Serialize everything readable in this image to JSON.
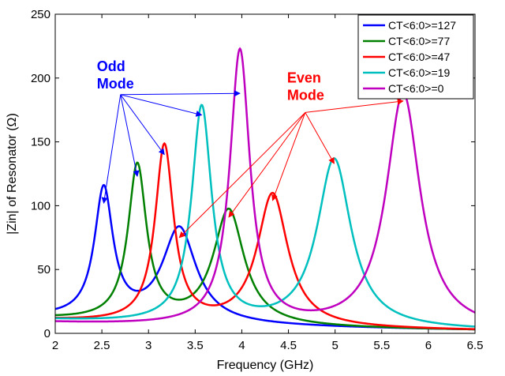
{
  "chart_data": {
    "type": "line",
    "xlabel": "Frequency (GHz)",
    "ylabel": "|Zin| of Resonator (Ω)",
    "xlim": [
      2,
      6.5
    ],
    "ylim": [
      0,
      250
    ],
    "xticks": [
      2,
      2.5,
      3,
      3.5,
      4,
      4.5,
      5,
      5.5,
      6,
      6.5
    ],
    "xtick_labels": [
      "2",
      "2.5",
      "3",
      "3.5",
      "4",
      "4.5",
      "5",
      "5.5",
      "6",
      "6.5"
    ],
    "yticks": [
      0,
      50,
      100,
      150,
      200,
      250
    ],
    "ytick_labels": [
      "0",
      "50",
      "100",
      "150",
      "200",
      "250"
    ],
    "legend_position": "top-right",
    "series": [
      {
        "name": "CT<6:0>=127",
        "color": "#0000ff",
        "odd": {
          "f": 2.52,
          "peak": 101,
          "w": 0.12
        },
        "even": {
          "f": 3.33,
          "peak": 74,
          "w": 0.22
        },
        "offset": 12
      },
      {
        "name": "CT<6:0>=77",
        "color": "#008000",
        "odd": {
          "f": 2.88,
          "peak": 122,
          "w": 0.12
        },
        "even": {
          "f": 3.86,
          "peak": 90,
          "w": 0.2
        },
        "offset": 11
      },
      {
        "name": "CT<6:0>=47",
        "color": "#ff0000",
        "odd": {
          "f": 3.17,
          "peak": 139,
          "w": 0.12
        },
        "even": {
          "f": 4.33,
          "peak": 104,
          "w": 0.2
        },
        "offset": 10
      },
      {
        "name": "CT<6:0>=19",
        "color": "#00bfbf",
        "odd": {
          "f": 3.57,
          "peak": 170,
          "w": 0.13
        },
        "even": {
          "f": 4.99,
          "peak": 132,
          "w": 0.22
        },
        "offset": 10
      },
      {
        "name": "CT<6:0>=0",
        "color": "#bf00bf",
        "odd": {
          "f": 3.98,
          "peak": 216,
          "w": 0.13
        },
        "even": {
          "f": 5.73,
          "peak": 185,
          "w": 0.22
        },
        "offset": 8
      }
    ],
    "annotations": [
      {
        "text_lines": [
          "Odd",
          "Mode"
        ],
        "color": "#0000ff",
        "origin": [
          2.7,
          187
        ],
        "targets": [
          [
            2.52,
            102
          ],
          [
            2.88,
            123
          ],
          [
            3.17,
            140
          ],
          [
            3.57,
            171
          ],
          [
            3.98,
            188
          ]
        ]
      },
      {
        "text_lines": [
          "Even",
          "Mode"
        ],
        "color": "#ff0000",
        "origin": [
          4.68,
          173
        ],
        "targets": [
          [
            3.33,
            75
          ],
          [
            3.86,
            91
          ],
          [
            4.33,
            104
          ],
          [
            4.99,
            133
          ],
          [
            5.73,
            182
          ]
        ]
      }
    ]
  }
}
